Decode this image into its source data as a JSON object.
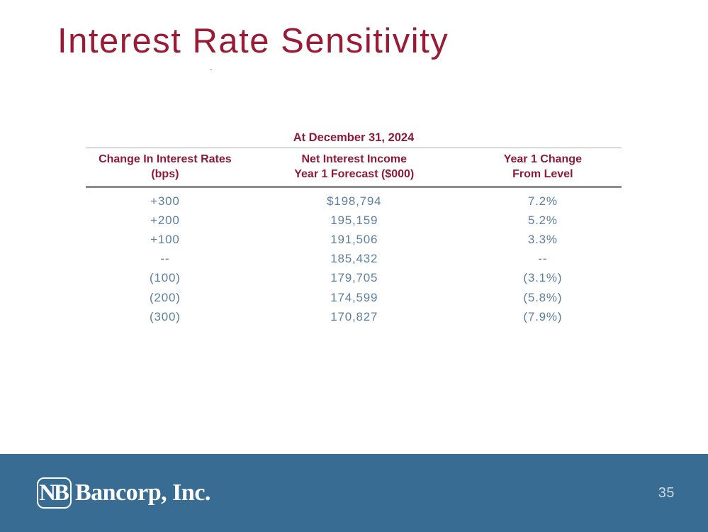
{
  "slide": {
    "title": "Interest Rate Sensitivity",
    "stray_mark": "."
  },
  "table": {
    "caption": "At December 31, 2024",
    "columns": [
      {
        "line1": "Change In Interest Rates",
        "line2": "(bps)"
      },
      {
        "line1": "Net Interest Income",
        "line2": "Year 1 Forecast ($000)"
      },
      {
        "line1": "Year 1 Change",
        "line2": "From Level"
      }
    ],
    "rows": [
      [
        "+300",
        "$198,794",
        "7.2%"
      ],
      [
        "+200",
        "195,159",
        "5.2%"
      ],
      [
        "+100",
        "191,506",
        "3.3%"
      ],
      [
        "--",
        "185,432",
        "--"
      ],
      [
        "(100)",
        "179,705",
        "(3.1%)"
      ],
      [
        "(200)",
        "174,599",
        "(5.8%)"
      ],
      [
        "(300)",
        "170,827",
        "(7.9%)"
      ]
    ]
  },
  "footer": {
    "logo_monogram": "NB",
    "logo_wordmark": "Bancorp, Inc.",
    "page_number": "35"
  },
  "colors": {
    "title_maroon": "#9A1B35",
    "header_maroon": "#8F1A38",
    "data_blue": "#5D7F9E",
    "footer_blue": "#386C92",
    "page_number_text": "#C9D9E6",
    "thin_rule": "#ABABAB",
    "thick_rule": "#8C8C8C",
    "background": "#FFFFFF",
    "logo_white": "#FFFFFF"
  }
}
